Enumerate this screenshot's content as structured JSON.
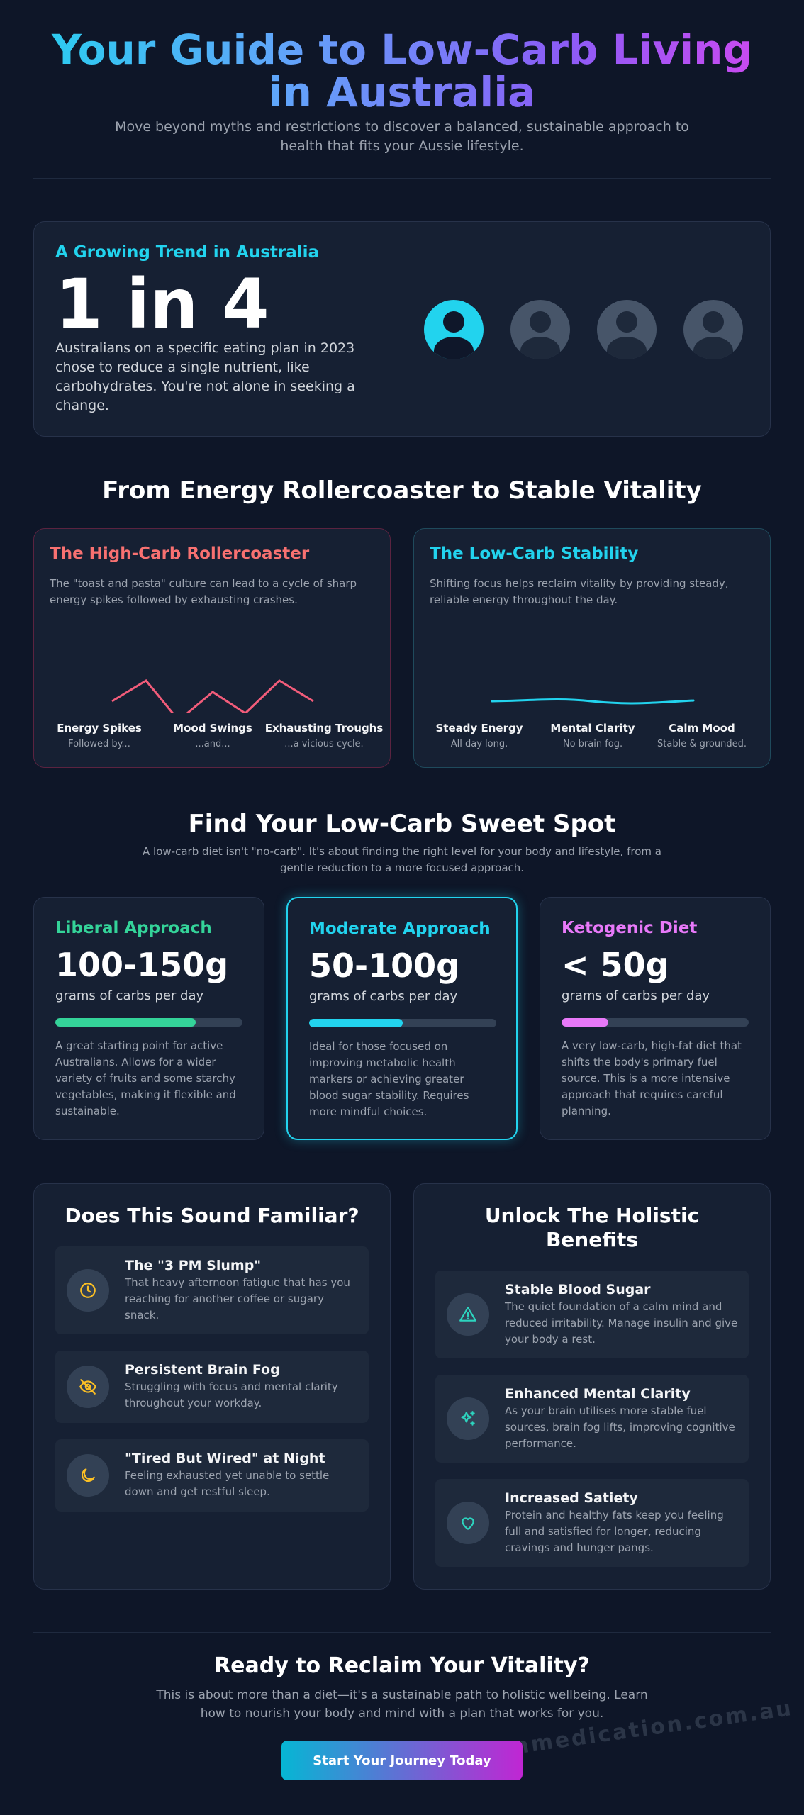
{
  "header": {
    "title_line1": "Your Guide to Low-Carb Living",
    "title_line2": "in Australia",
    "subtitle": "Move beyond myths and restrictions to discover a balanced, sustainable approach to health that fits your Aussie lifestyle."
  },
  "trend": {
    "label": "A Growing Trend in Australia",
    "stat": "1 in 4",
    "description": "Australians on a specific eating plan in 2023 chose to reduce a single nutrient, like carbohydrates. You're not alone in seeking a change.",
    "people_total": 4,
    "people_highlighted": 1
  },
  "comparison": {
    "title": "From Energy Rollercoaster to Stable Vitality",
    "high_carb": {
      "title": "The High-Carb Rollercoaster",
      "description": "The \"toast and pasta\" culture can lead to a cycle of sharp energy spikes followed by exhausting crashes.",
      "color": "#f25c7a",
      "labels": [
        {
          "title": "Energy Spikes",
          "sub": "Followed by..."
        },
        {
          "title": "Mood Swings",
          "sub": "...and..."
        },
        {
          "title": "Exhausting Troughs",
          "sub": "...a vicious cycle."
        }
      ]
    },
    "low_carb": {
      "title": "The Low-Carb Stability",
      "description": "Shifting focus helps reclaim vitality by providing steady, reliable energy throughout the day.",
      "color": "#22d3ee",
      "labels": [
        {
          "title": "Steady Energy",
          "sub": "All day long."
        },
        {
          "title": "Mental Clarity",
          "sub": "No brain fog."
        },
        {
          "title": "Calm Mood",
          "sub": "Stable & grounded."
        }
      ]
    }
  },
  "sweet_spot": {
    "title": "Find Your Low-Carb Sweet Spot",
    "subtitle": "A low-carb diet isn't \"no-carb\". It's about finding the right level for your body and lifestyle, from a gentle reduction to a more focused approach.",
    "tiers": [
      {
        "name": "Liberal Approach",
        "amount": "100-150g",
        "unit": "grams of carbs per day",
        "level": 0.75,
        "color": "#34d399",
        "description": "A great starting point for active Australians. Allows for a wider variety of fruits and some starchy vegetables, making it flexible and sustainable."
      },
      {
        "name": "Moderate Approach",
        "amount": "50-100g",
        "unit": "grams of carbs per day",
        "level": 0.5,
        "color": "#22d3ee",
        "description": "Ideal for those focused on improving metabolic health markers or achieving greater blood sugar stability. Requires more mindful choices."
      },
      {
        "name": "Ketogenic Diet",
        "amount": "< 50g",
        "unit": "grams of carbs per day",
        "level": 0.25,
        "color": "#e879f9",
        "description": "A very low-carb, high-fat diet that shifts the body's primary fuel source. This is a more intensive approach that requires careful planning."
      }
    ]
  },
  "familiar": {
    "title": "Does This Sound Familiar?",
    "items": [
      {
        "icon": "clock-icon",
        "title": "The \"3 PM Slump\"",
        "description": "That heavy afternoon fatigue that has you reaching for another coffee or sugary snack."
      },
      {
        "icon": "eye-off-icon",
        "title": "Persistent Brain Fog",
        "description": "Struggling with focus and mental clarity throughout your workday."
      },
      {
        "icon": "moon-icon",
        "title": "\"Tired But Wired\" at Night",
        "description": "Feeling exhausted yet unable to settle down and get restful sleep."
      }
    ],
    "icon_color": "#fbbf24"
  },
  "benefits": {
    "title_line1": "Unlock The Holistic",
    "title_line2": "Benefits",
    "items": [
      {
        "icon": "warning-triangle-icon",
        "title": "Stable Blood Sugar",
        "description": "The quiet foundation of a calm mind and reduced irritability. Manage insulin and give your body a rest."
      },
      {
        "icon": "sparkles-icon",
        "title": "Enhanced Mental Clarity",
        "description": "As your brain utilises more stable fuel sources, brain fog lifts, improving cognitive performance."
      },
      {
        "icon": "heart-icon",
        "title": "Increased Satiety",
        "description": "Protein and healthy fats keep you feeling full and satisfied for longer, reducing cravings and hunger pangs."
      }
    ],
    "icon_color": "#2dd4bf"
  },
  "cta": {
    "title": "Ready to Reclaim Your Vitality?",
    "subtitle": "This is about more than a diet—it's a sustainable path to holistic wellbeing. Learn how to nourish your body and mind with a plan that works for you.",
    "button_label": "Start Your Journey Today"
  },
  "watermark": "morethanmedication.com.au"
}
